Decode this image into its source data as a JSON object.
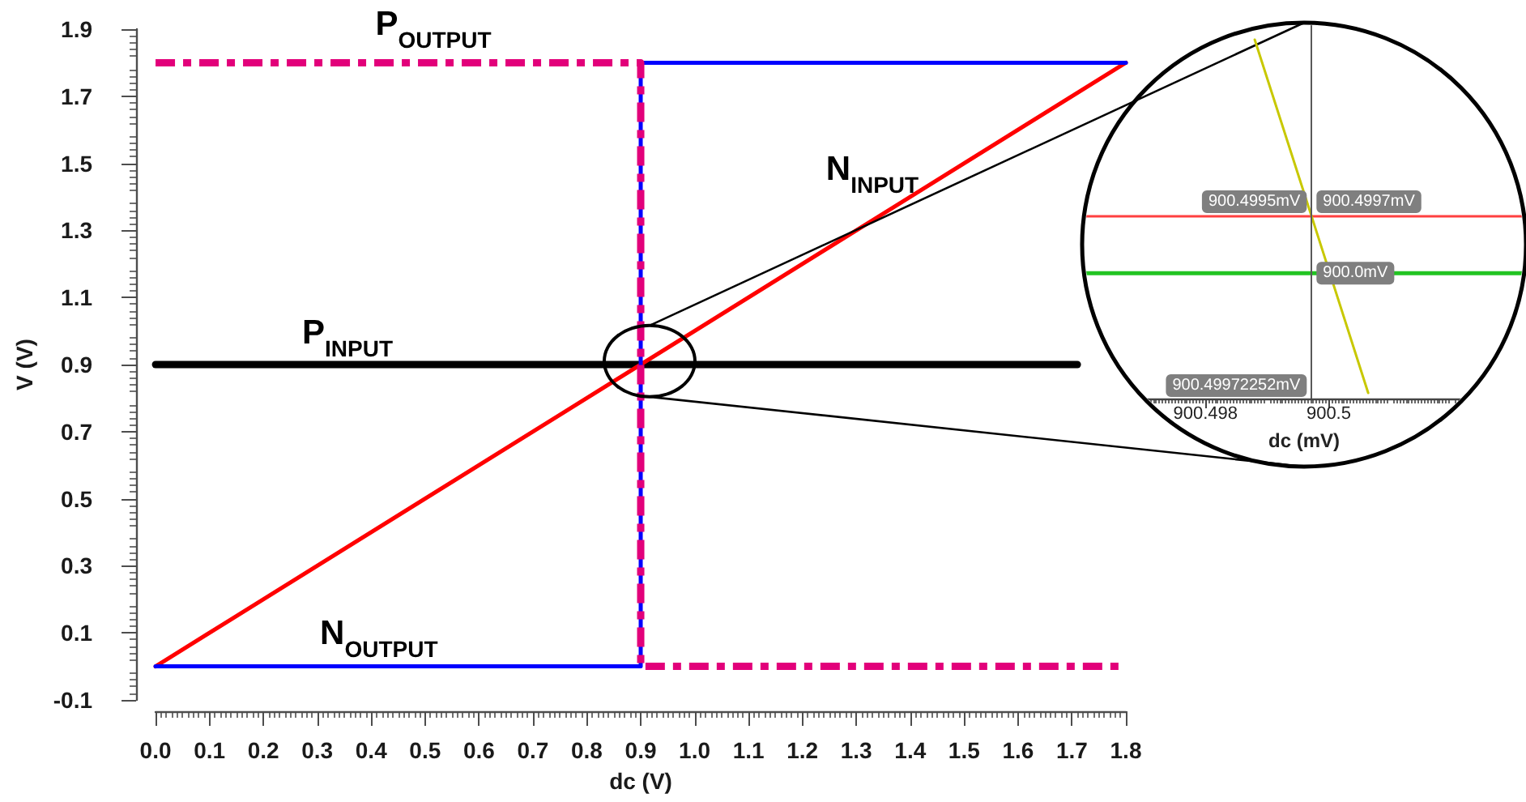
{
  "chart_data": [
    {
      "type": "line",
      "xlabel": "dc (V)",
      "ylabel": "V (V)",
      "series": [
        {
          "name": "P$_{INPUT}$",
          "color": "#000000",
          "x": [
            0,
            1.71
          ],
          "values": [
            0.9,
            0.9
          ]
        },
        {
          "name": "N$_{INPUT}$",
          "color": "#ff0000",
          "x": [
            0,
            1.8
          ],
          "values": [
            0,
            1.8
          ]
        },
        {
          "name": "N$_{OUTPUT}$",
          "color": "#0000ff",
          "x": [
            0,
            0.9,
            0.9,
            1.8
          ],
          "values": [
            0,
            0,
            1.8,
            1.8
          ]
        },
        {
          "name": "P$_{OUTPUT}$",
          "color": "#e2007a",
          "x": [
            0,
            0.9,
            0.9,
            1.8
          ],
          "values": [
            1.8,
            1.8,
            0,
            0
          ],
          "line_style": "dashed"
        }
      ],
      "xlim": [
        0,
        1.8
      ],
      "ylim": [
        -0.1,
        1.9
      ],
      "xticks": [
        {
          "value": 0,
          "label": "0.0"
        },
        0.1,
        0.2,
        0.3,
        0.4,
        0.5,
        0.6,
        0.7,
        0.8,
        0.9,
        {
          "value": 1,
          "label": "1.0"
        },
        1.1,
        1.2,
        1.3,
        1.4,
        1.5,
        1.6,
        1.7,
        1.8
      ],
      "yticks": [
        -0.1,
        0.1,
        0.3,
        0.5,
        0.7,
        0.9,
        1.1,
        1.3,
        1.5,
        1.7,
        1.9
      ]
    },
    {
      "type": "line",
      "xlabel": "dc (mV)",
      "series": [
        {
          "color": "#ff4040",
          "x": [
            900.496,
            900.49972252,
            900.5032
          ],
          "values": [
            900.4997,
            900.4997,
            900.4997
          ],
          "value_labels": [
            null,
            "900.4997mV",
            null
          ]
        },
        {
          "color": "#22c422",
          "x": [
            900.496,
            900.49972252,
            900.5032
          ],
          "values": [
            900.0,
            900.0,
            900.0
          ],
          "value_labels": [
            null,
            "900.0mV",
            null
          ]
        },
        {
          "color": "#c8c800",
          "x": [
            900.4988,
            900.49972252,
            900.50064
          ],
          "values": [
            902.05,
            900.4995,
            898.95
          ],
          "value_labels": [
            null,
            "900.4995mV",
            null
          ]
        }
      ],
      "xlim": [
        900.496,
        900.5032
      ],
      "xticks": [
        900.498,
        900.5
      ],
      "tick_labels": "x",
      "ref_lines": [
        {
          "axis": "x",
          "value": 900.49972252,
          "label": "900.49972252mV",
          "color": "#595959"
        }
      ]
    }
  ]
}
